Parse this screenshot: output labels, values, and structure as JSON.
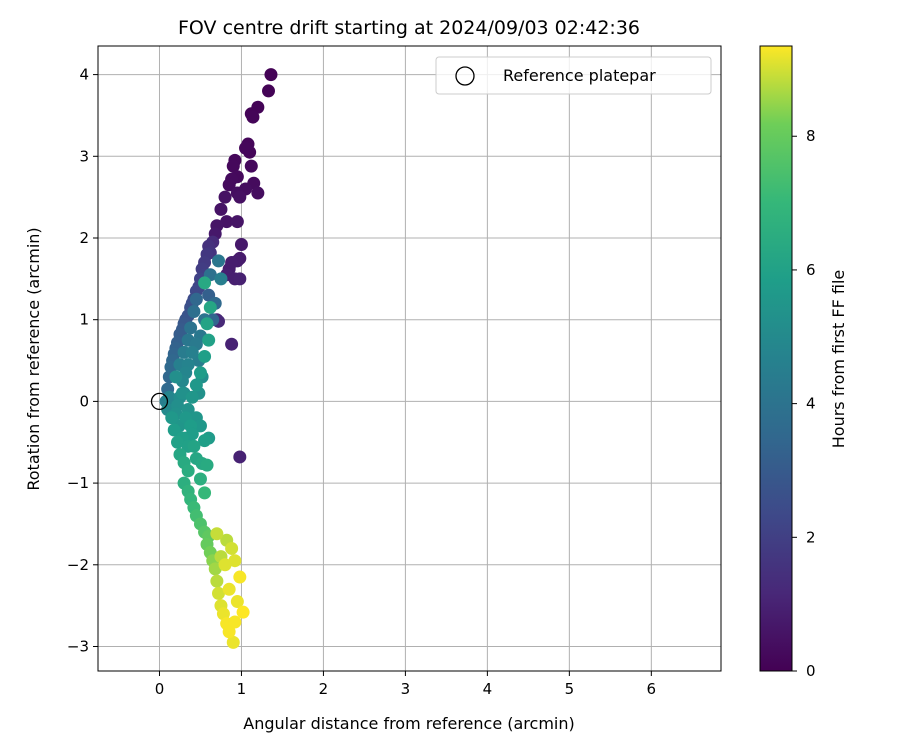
{
  "chart_data": {
    "type": "scatter",
    "title": "FOV centre drift starting at 2024/09/03 02:42:36",
    "xlabel": "Angular distance from reference (arcmin)",
    "ylabel": "Rotation from reference (arcmin)",
    "xlim": [
      -0.75,
      6.85
    ],
    "ylim": [
      -3.3,
      4.35
    ],
    "xticks": [
      "0",
      "1",
      "2",
      "3",
      "4",
      "5",
      "6"
    ],
    "yticks": [
      "−3",
      "−2",
      "−1",
      "0",
      "1",
      "2",
      "3",
      "4"
    ],
    "grid": true,
    "legend": {
      "position": "top-right",
      "entries": [
        "Reference platepar"
      ]
    },
    "reference_point": {
      "x": 0,
      "y": 0
    },
    "colorbar": {
      "label": "Hours from first FF file",
      "range": [
        0,
        9.35
      ],
      "ticks": [
        "0",
        "2",
        "4",
        "6",
        "8"
      ],
      "colormap": "viridis"
    },
    "series": [
      {
        "points": [
          [
            1.36,
            4.0,
            0.05
          ],
          [
            1.33,
            3.8,
            0.08
          ],
          [
            1.2,
            3.6,
            0.1
          ],
          [
            1.12,
            3.52,
            0.1
          ],
          [
            1.14,
            3.48,
            0.12
          ],
          [
            1.08,
            3.15,
            0.15
          ],
          [
            1.1,
            3.05,
            0.15
          ],
          [
            1.05,
            3.1,
            0.18
          ],
          [
            0.92,
            2.95,
            0.2
          ],
          [
            0.9,
            2.88,
            0.22
          ],
          [
            1.12,
            2.88,
            0.25
          ],
          [
            0.95,
            2.75,
            0.25
          ],
          [
            0.88,
            2.72,
            0.28
          ],
          [
            0.85,
            2.65,
            0.3
          ],
          [
            1.15,
            2.67,
            0.3
          ],
          [
            1.2,
            2.55,
            0.35
          ],
          [
            1.05,
            2.6,
            0.35
          ],
          [
            0.95,
            2.55,
            0.4
          ],
          [
            0.98,
            2.5,
            0.45
          ],
          [
            0.8,
            2.5,
            0.5
          ],
          [
            0.75,
            2.35,
            0.55
          ],
          [
            0.82,
            2.2,
            0.55
          ],
          [
            0.95,
            2.2,
            0.6
          ],
          [
            0.7,
            2.15,
            0.6
          ],
          [
            0.68,
            2.05,
            0.7
          ],
          [
            1.0,
            1.92,
            0.7
          ],
          [
            0.98,
            1.75,
            0.75
          ],
          [
            0.95,
            1.72,
            0.8
          ],
          [
            0.88,
            1.7,
            0.85
          ],
          [
            0.85,
            1.62,
            0.85
          ],
          [
            0.82,
            1.55,
            0.9
          ],
          [
            0.92,
            1.5,
            0.9
          ],
          [
            0.98,
            1.5,
            0.95
          ],
          [
            0.88,
            0.7,
            1.0
          ],
          [
            0.98,
            -0.68,
            1.0
          ],
          [
            0.7,
            1.0,
            1.1
          ],
          [
            0.72,
            0.98,
            1.2
          ],
          [
            0.65,
            1.95,
            1.3
          ],
          [
            0.6,
            1.9,
            1.5
          ],
          [
            0.62,
            1.82,
            1.6
          ],
          [
            0.58,
            1.8,
            1.7
          ],
          [
            0.55,
            1.7,
            1.8
          ],
          [
            0.52,
            1.62,
            1.9
          ],
          [
            0.55,
            1.55,
            2.0
          ],
          [
            0.5,
            1.5,
            2.1
          ],
          [
            0.48,
            1.4,
            2.2
          ],
          [
            0.45,
            1.35,
            2.3
          ],
          [
            0.42,
            1.25,
            2.4
          ],
          [
            0.4,
            1.2,
            2.5
          ],
          [
            0.38,
            1.15,
            2.6
          ],
          [
            0.35,
            1.05,
            2.7
          ],
          [
            0.32,
            1.0,
            2.8
          ],
          [
            0.3,
            0.95,
            2.9
          ],
          [
            0.28,
            0.88,
            3.0
          ],
          [
            0.25,
            0.82,
            3.1
          ],
          [
            0.22,
            0.72,
            3.2
          ],
          [
            0.2,
            0.65,
            3.3
          ],
          [
            0.18,
            0.58,
            3.4
          ],
          [
            0.16,
            0.5,
            3.5
          ],
          [
            0.14,
            0.42,
            3.6
          ],
          [
            0.6,
            1.3,
            3.2
          ],
          [
            0.65,
            1.0,
            3.4
          ],
          [
            0.68,
            1.2,
            3.6
          ],
          [
            0.62,
            1.55,
            3.9
          ],
          [
            0.72,
            1.72,
            4.2
          ],
          [
            0.75,
            1.5,
            4.5
          ],
          [
            0.55,
            1.0,
            4.0
          ],
          [
            0.5,
            0.8,
            4.2
          ],
          [
            0.45,
            0.7,
            4.3
          ],
          [
            0.48,
            0.5,
            4.5
          ],
          [
            0.4,
            0.6,
            4.6
          ],
          [
            0.35,
            0.45,
            4.7
          ],
          [
            0.32,
            0.35,
            4.8
          ],
          [
            0.28,
            0.25,
            4.9
          ],
          [
            0.3,
            0.1,
            5.0
          ],
          [
            0.25,
            0.05,
            5.1
          ],
          [
            0.22,
            -0.05,
            5.2
          ],
          [
            0.2,
            -0.15,
            5.3
          ],
          [
            0.35,
            -0.1,
            5.4
          ],
          [
            0.4,
            0.05,
            5.5
          ],
          [
            0.45,
            0.2,
            5.6
          ],
          [
            0.5,
            0.35,
            5.8
          ],
          [
            0.55,
            0.55,
            5.9
          ],
          [
            0.6,
            0.75,
            6.0
          ],
          [
            0.58,
            0.95,
            6.1
          ],
          [
            0.62,
            1.15,
            6.2
          ],
          [
            0.55,
            1.45,
            6.3
          ],
          [
            0.6,
            -0.45,
            5.7
          ],
          [
            0.55,
            -0.48,
            5.9
          ],
          [
            0.15,
            -0.2,
            5.6
          ],
          [
            0.18,
            -0.35,
            5.8
          ],
          [
            0.22,
            -0.5,
            6.0
          ],
          [
            0.25,
            -0.65,
            6.2
          ],
          [
            0.3,
            -0.75,
            6.4
          ],
          [
            0.35,
            -0.85,
            6.5
          ],
          [
            0.52,
            -0.76,
            6.3
          ],
          [
            0.58,
            -0.78,
            6.4
          ],
          [
            0.5,
            -0.95,
            6.6
          ],
          [
            0.3,
            -1.0,
            6.6
          ],
          [
            0.35,
            -1.1,
            6.8
          ],
          [
            0.38,
            -1.2,
            6.9
          ],
          [
            0.55,
            -1.12,
            7.0
          ],
          [
            0.42,
            -1.3,
            7.1
          ],
          [
            0.45,
            -1.4,
            7.3
          ],
          [
            0.5,
            -1.5,
            7.5
          ],
          [
            0.55,
            -1.6,
            7.7
          ],
          [
            0.6,
            -1.65,
            7.9
          ],
          [
            0.58,
            -1.75,
            8.0
          ],
          [
            0.62,
            -1.85,
            8.2
          ],
          [
            0.65,
            -1.95,
            8.4
          ],
          [
            0.68,
            -2.05,
            8.6
          ],
          [
            0.7,
            -2.2,
            8.8
          ],
          [
            0.72,
            -2.35,
            9.0
          ],
          [
            0.75,
            -2.5,
            9.1
          ],
          [
            0.78,
            -2.6,
            9.2
          ],
          [
            0.82,
            -2.72,
            9.3
          ],
          [
            0.85,
            -2.82,
            9.3
          ],
          [
            0.9,
            -2.95,
            9.2
          ],
          [
            0.92,
            -2.7,
            9.3
          ],
          [
            1.02,
            -2.58,
            9.35
          ],
          [
            0.95,
            -2.45,
            9.2
          ],
          [
            0.98,
            -2.15,
            9.3
          ],
          [
            0.88,
            -1.8,
            9.0
          ],
          [
            0.82,
            -1.7,
            8.8
          ],
          [
            0.7,
            -1.62,
            8.9
          ],
          [
            0.92,
            -1.95,
            9.1
          ],
          [
            0.85,
            -2.3,
            9.2
          ],
          [
            0.8,
            -2.0,
            9.1
          ],
          [
            0.75,
            -1.9,
            8.8
          ],
          [
            0.12,
            0.3,
            3.5
          ],
          [
            0.1,
            0.15,
            3.6
          ],
          [
            0.08,
            0.0,
            4.5
          ],
          [
            0.1,
            -0.1,
            5.0
          ],
          [
            0.12,
            0.05,
            4.8
          ],
          [
            0.25,
            0.45,
            4.6
          ],
          [
            0.3,
            0.6,
            4.4
          ],
          [
            0.35,
            0.75,
            4.2
          ],
          [
            0.38,
            0.9,
            4.0
          ],
          [
            0.42,
            1.1,
            3.8
          ],
          [
            0.45,
            1.25,
            3.5
          ],
          [
            0.2,
            0.3,
            5.2
          ],
          [
            0.28,
            0.1,
            5.3
          ],
          [
            0.32,
            -0.2,
            5.6
          ],
          [
            0.38,
            -0.3,
            5.8
          ],
          [
            0.42,
            -0.55,
            6.1
          ],
          [
            0.45,
            -0.7,
            6.2
          ],
          [
            0.28,
            -0.45,
            5.9
          ],
          [
            0.24,
            -0.3,
            5.5
          ],
          [
            0.48,
            0.1,
            5.3
          ],
          [
            0.52,
            0.3,
            5.2
          ],
          [
            0.5,
            -0.3,
            5.6
          ],
          [
            0.45,
            -0.2,
            5.5
          ],
          [
            0.4,
            -0.4,
            5.8
          ],
          [
            0.35,
            -0.55,
            6.0
          ],
          [
            0.32,
            -0.45,
            5.8
          ]
        ]
      }
    ]
  }
}
